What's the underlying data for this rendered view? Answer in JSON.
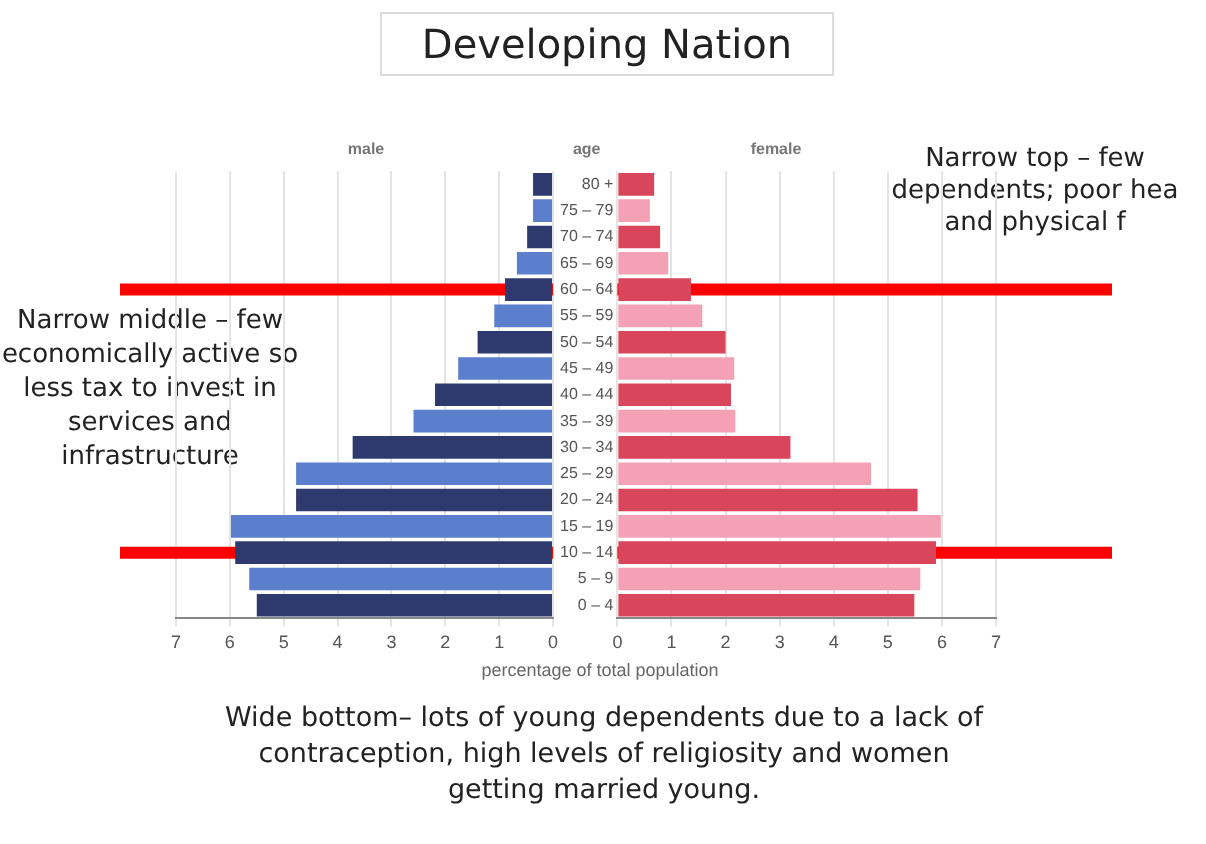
{
  "chart_data": [
    {
      "type": "other",
      "title": "Developing Nation",
      "annotations": [
        "Narrow top – few dependents; poor hea and physical f",
        "Narrow middle – few economically active so less tax to invest in services and infrastructure",
        "Wide bottom– lots of young dependents due to a lack of contraception, high levels of religiosity and women getting married young."
      ]
    },
    {
      "type": "bar",
      "orientation": "horizontal",
      "title": "male",
      "categories": [
        "80 +",
        "75 – 79",
        "70 – 74",
        "65 – 69",
        "60 – 64",
        "55 – 59",
        "50 – 54",
        "45 – 49",
        "40 – 44",
        "35 – 39",
        "30 – 34",
        "25 – 29",
        "20 – 24",
        "15 – 19",
        "10 – 14",
        "5 – 9",
        "0 – 4"
      ],
      "series": [
        {
          "values": [
            0.37,
            0.37,
            0.48,
            0.67,
            0.89,
            1.09,
            1.4,
            1.76,
            2.19,
            2.59,
            3.72,
            4.77,
            4.77,
            5.98,
            5.9,
            5.64,
            5.5
          ],
          "colors": [
            "#2e3a6e",
            "#5b7fcc",
            "#2e3a6e",
            "#5b7fcc",
            "#2e3a6e",
            "#5b7fcc",
            "#2e3a6e",
            "#5b7fcc",
            "#2e3a6e",
            "#5b7fcc",
            "#2e3a6e",
            "#5b7fcc",
            "#2e3a6e",
            "#5b7fcc",
            "#2e3a6e",
            "#5b7fcc",
            "#2e3a6e"
          ]
        }
      ],
      "xlim": [
        7,
        0
      ],
      "xticks": [
        7,
        6,
        5,
        4,
        3,
        2,
        1,
        0
      ],
      "grid": "x",
      "tick_labels": "x",
      "ref_lines": [
        {
          "axis": "y",
          "value": "60 – 64",
          "color": "#ff0000"
        },
        {
          "axis": "y",
          "value": "10 – 14",
          "color": "#ff0000"
        }
      ]
    },
    {
      "type": "bar",
      "orientation": "horizontal",
      "title": "female",
      "ylabel": "age",
      "xlabel": "percentage of total population",
      "categories": [
        "80 +",
        "75 – 79",
        "70 – 74",
        "65 – 69",
        "60 – 64",
        "55 – 59",
        "50 – 54",
        "45 – 49",
        "40 – 44",
        "35 – 39",
        "30 – 34",
        "25 – 29",
        "20 – 24",
        "15 – 19",
        "10 – 14",
        "5 – 9",
        "0 – 4"
      ],
      "series": [
        {
          "values": [
            0.68,
            0.6,
            0.79,
            0.94,
            1.36,
            1.57,
            2.0,
            2.16,
            2.1,
            2.18,
            3.2,
            4.69,
            5.55,
            5.98,
            5.89,
            5.6,
            5.49
          ],
          "colors": [
            "#d9455a",
            "#f4a0b5",
            "#d9455a",
            "#f4a0b5",
            "#d9455a",
            "#f4a0b5",
            "#d9455a",
            "#f4a0b5",
            "#d9455a",
            "#f4a0b5",
            "#d9455a",
            "#f4a0b5",
            "#d9455a",
            "#f4a0b5",
            "#d9455a",
            "#f4a0b5",
            "#d9455a"
          ]
        }
      ],
      "xlim": [
        0,
        7
      ],
      "xticks": [
        0,
        1,
        2,
        3,
        4,
        5,
        6,
        7
      ],
      "grid": "x",
      "ref_lines": [
        {
          "axis": "y",
          "value": "60 – 64",
          "color": "#ff0000"
        },
        {
          "axis": "y",
          "value": "10 – 14",
          "color": "#ff0000"
        }
      ]
    }
  ]
}
